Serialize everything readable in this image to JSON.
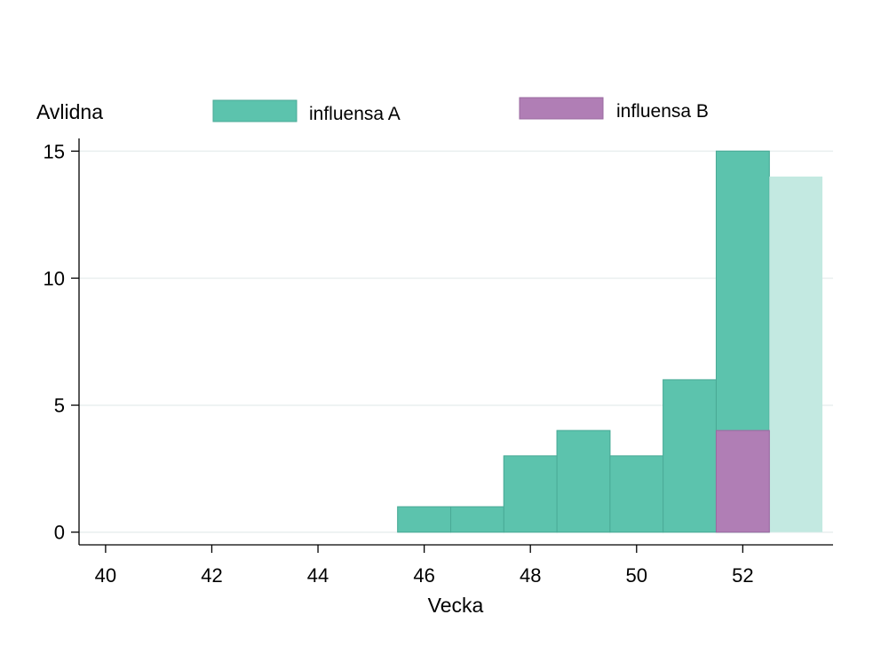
{
  "chart_data": {
    "type": "bar",
    "ylabel": "Avlidna",
    "xlabel": "Vecka",
    "xlim": [
      39.5,
      53.7
    ],
    "ylim": [
      -0.5,
      15.5
    ],
    "x_ticks": [
      40,
      42,
      44,
      46,
      48,
      50,
      52
    ],
    "y_ticks": [
      0,
      5,
      10,
      15
    ],
    "grid": true,
    "legend_position": "top",
    "series": [
      {
        "name": "influensa A",
        "color": "#5cc3ad",
        "bars": [
          {
            "week": 46,
            "value": 1
          },
          {
            "week": 47,
            "value": 1
          },
          {
            "week": 48,
            "value": 3
          },
          {
            "week": 49,
            "value": 4
          },
          {
            "week": 50,
            "value": 3
          },
          {
            "week": 51,
            "value": 6
          },
          {
            "week": 52,
            "value": 15
          },
          {
            "week": 53,
            "value": 14,
            "faded": true
          }
        ]
      },
      {
        "name": "influensa B",
        "color": "#b07eb5",
        "bars": [
          {
            "week": 52,
            "value": 4
          }
        ]
      }
    ],
    "faded_color": "#c3e9e1"
  }
}
